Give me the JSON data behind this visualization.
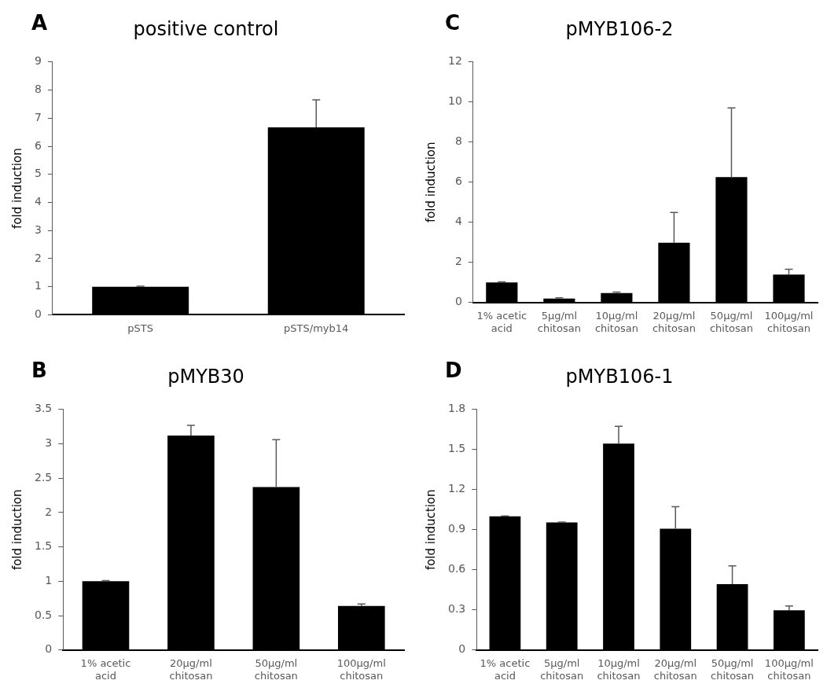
{
  "chart_data": [
    {
      "type": "bar",
      "title": "positive control",
      "annotations": [
        "A"
      ],
      "ylabel": "fold induction",
      "categories": [
        "pSTS",
        "pSTS/myb14"
      ],
      "values": [
        1.0,
        6.67
      ],
      "errors": [
        [
          1.0,
          1.02
        ],
        [
          6.67,
          7.65
        ]
      ],
      "color": "#000000",
      "ylim": [
        0,
        9
      ],
      "yticks": [
        0,
        1,
        2,
        3,
        4,
        5,
        6,
        7,
        8,
        9
      ],
      "grid": false,
      "legend": false
    },
    {
      "type": "bar",
      "title": "pMYB106-2",
      "annotations": [
        "C"
      ],
      "ylabel": "fold induction",
      "categories": [
        "1% acetic acid",
        "5µg/ml chitosan",
        "10µg/ml chitosan",
        "20µg/ml chitosan",
        "50µg/ml chitosan",
        "100µg/ml chitosan"
      ],
      "values": [
        1.0,
        0.2,
        0.47,
        2.98,
        6.26,
        1.39
      ],
      "errors": [
        [
          1.0,
          1.03
        ],
        [
          0.2,
          0.24
        ],
        [
          0.47,
          0.52
        ],
        [
          2.98,
          4.49
        ],
        [
          6.26,
          9.71
        ],
        [
          1.39,
          1.66
        ]
      ],
      "color": "#000000",
      "ylim": [
        0,
        12
      ],
      "yticks": [
        0,
        2,
        4,
        6,
        8,
        10,
        12
      ],
      "grid": false,
      "legend": false
    },
    {
      "type": "bar",
      "title": "pMYB30",
      "annotations": [
        "B"
      ],
      "ylabel": "fold induction",
      "categories": [
        "1% acetic acid",
        "20µg/ml chitosan",
        "50µg/ml chitosan",
        "100µg/ml chitosan"
      ],
      "values": [
        1.0,
        3.12,
        2.37,
        0.64
      ],
      "errors": [
        [
          1.0,
          1.01
        ],
        [
          3.12,
          3.27
        ],
        [
          2.37,
          3.06
        ],
        [
          0.64,
          0.67
        ]
      ],
      "color": "#000000",
      "ylim": [
        0,
        3.5
      ],
      "yticks": [
        0,
        0.5,
        1,
        1.5,
        2,
        2.5,
        3,
        3.5
      ],
      "grid": false,
      "legend": false
    },
    {
      "type": "bar",
      "title": "pMYB106-1",
      "annotations": [
        "D"
      ],
      "ylabel": "fold induction",
      "categories": [
        "1% acetic acid",
        "5µg/ml chitosan",
        "10µg/ml chitosan",
        "20µg/ml chitosan",
        "50µg/ml chitosan",
        "100µg/ml chitosan"
      ],
      "values": [
        1.0,
        0.954,
        1.544,
        0.908,
        0.493,
        0.297
      ],
      "errors": [
        [
          1.0,
          1.003
        ],
        [
          0.954,
          0.957
        ],
        [
          1.544,
          1.674
        ],
        [
          0.908,
          1.073
        ],
        [
          0.493,
          0.63
        ],
        [
          0.297,
          0.33
        ]
      ],
      "color": "#000000",
      "ylim": [
        0,
        1.8
      ],
      "yticks": [
        0,
        0.3,
        0.6,
        0.9,
        1.2,
        1.5,
        1.8
      ],
      "grid": false,
      "legend": false
    }
  ]
}
